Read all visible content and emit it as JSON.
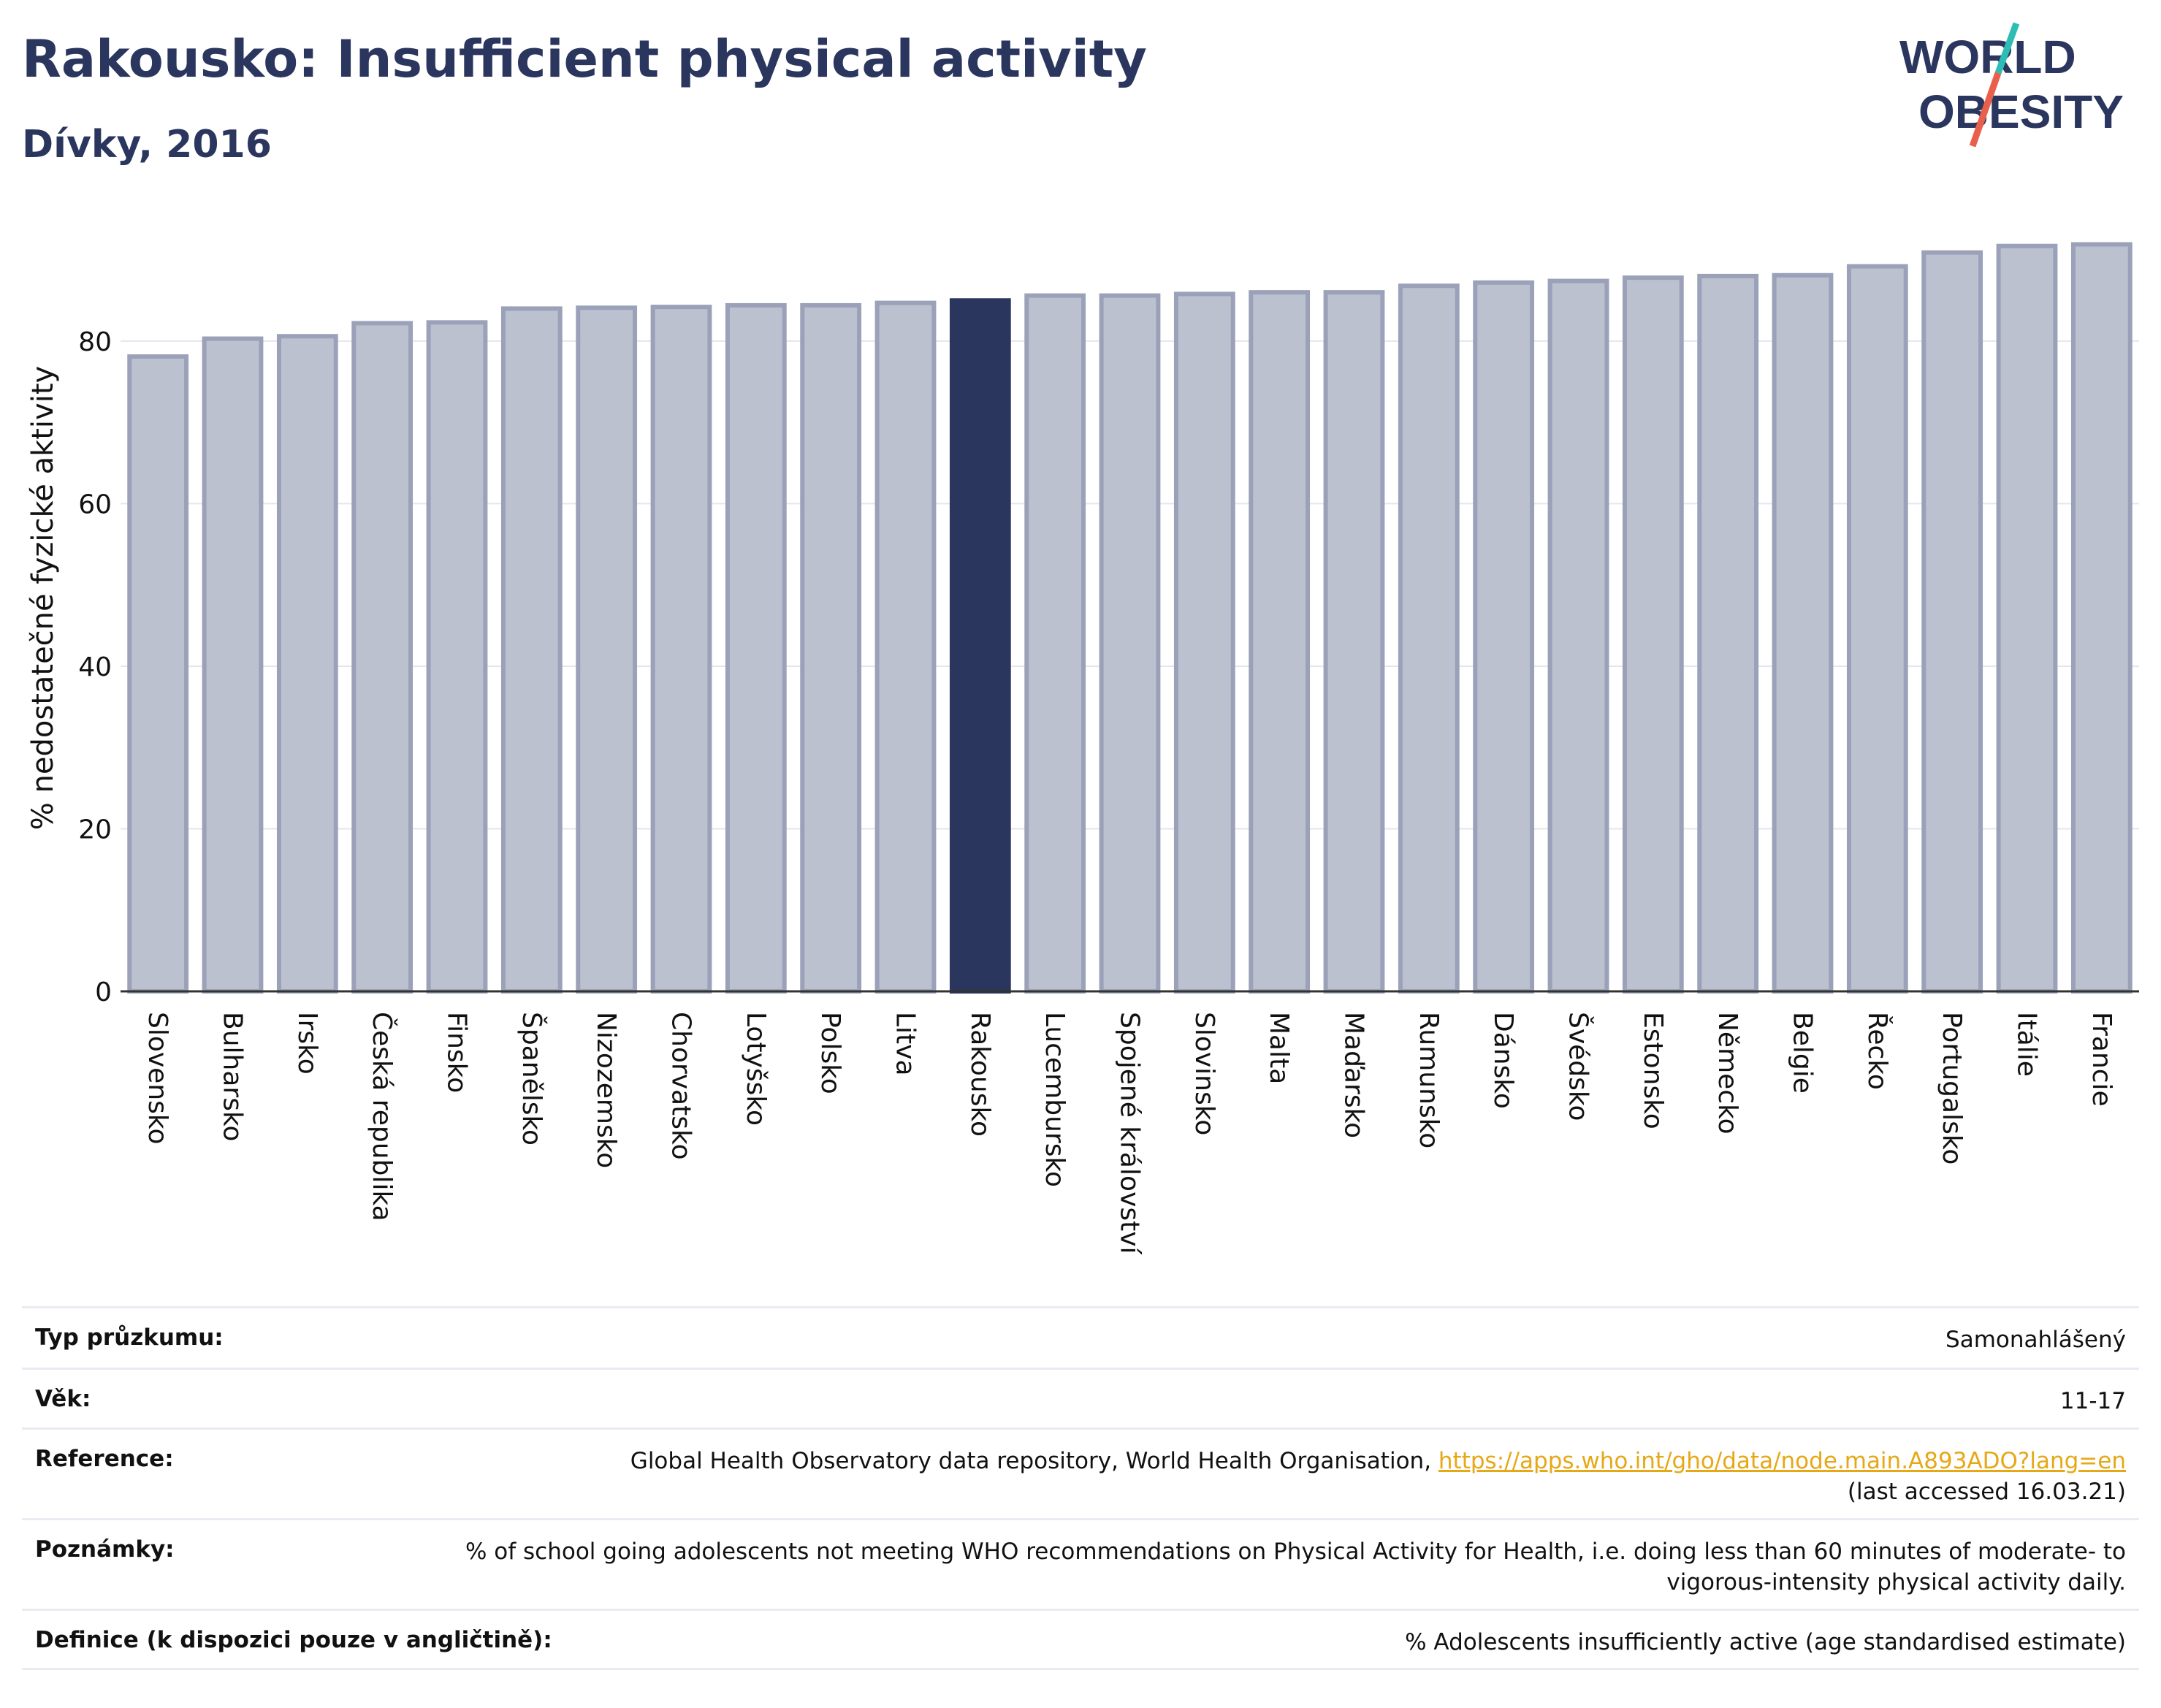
{
  "header": {
    "title": "Rakousko: Insufficient physical activity",
    "subtitle": "Dívky, 2016"
  },
  "logo": {
    "line1": "WORLD",
    "line2": "OBESITY",
    "slash_colors": [
      "#2ebdb5",
      "#e8604c"
    ]
  },
  "colors": {
    "bar": "#bcc1d0",
    "bar_border": "#9aa1b8",
    "highlight": "#2b365f",
    "axis_text": "#111111",
    "grid": "#e4e6ee"
  },
  "chart_data": {
    "type": "bar",
    "title": "Rakousko: Insufficient physical activity",
    "subtitle": "Dívky, 2016",
    "ylabel": "% nedostatečné fyzické aktivity",
    "xlabel": "",
    "ylim": [
      0,
      95
    ],
    "yticks": [
      0,
      20,
      40,
      60,
      80
    ],
    "grid": true,
    "highlight_category": "Rakousko",
    "categories": [
      "Slovensko",
      "Bulharsko",
      "Irsko",
      "Česká republika",
      "Finsko",
      "Španělsko",
      "Nizozemsko",
      "Chorvatsko",
      "Lotyšsko",
      "Polsko",
      "Litva",
      "Rakousko",
      "Lucembursko",
      "Spojené království",
      "Slovinsko",
      "Malta",
      "Maďarsko",
      "Rumunsko",
      "Dánsko",
      "Švédsko",
      "Estonsko",
      "Německo",
      "Belgie",
      "Řecko",
      "Portugalsko",
      "Itálie",
      "Francie"
    ],
    "values": [
      78.1,
      80.3,
      80.6,
      82.2,
      82.3,
      84.0,
      84.1,
      84.2,
      84.4,
      84.4,
      84.7,
      85.0,
      85.6,
      85.6,
      85.8,
      86.0,
      86.0,
      86.8,
      87.2,
      87.4,
      87.8,
      88.0,
      88.1,
      89.2,
      90.9,
      91.7,
      91.9
    ]
  },
  "meta": [
    {
      "label": "Typ průzkumu:",
      "value": "Samonahlášený"
    },
    {
      "label": "Věk:",
      "value": "11-17"
    },
    {
      "label": "Reference:",
      "value": "Global Health Observatory data repository, World Health Organisation, ",
      "link": "https://apps.who.int/gho/data/node.main.A893ADO?lang=en",
      "value_after": "(last accessed 16.03.21)"
    },
    {
      "label": "Poznámky:",
      "value": "% of school going adolescents not meeting WHO recommendations on Physical Activity for Health, i.e. doing less than 60 minutes of moderate- to vigorous-intensity physical activity daily."
    },
    {
      "label": "Definice (k dispozici pouze v angličtině):",
      "value": "% Adolescents insufficiently active (age standardised estimate)"
    }
  ]
}
